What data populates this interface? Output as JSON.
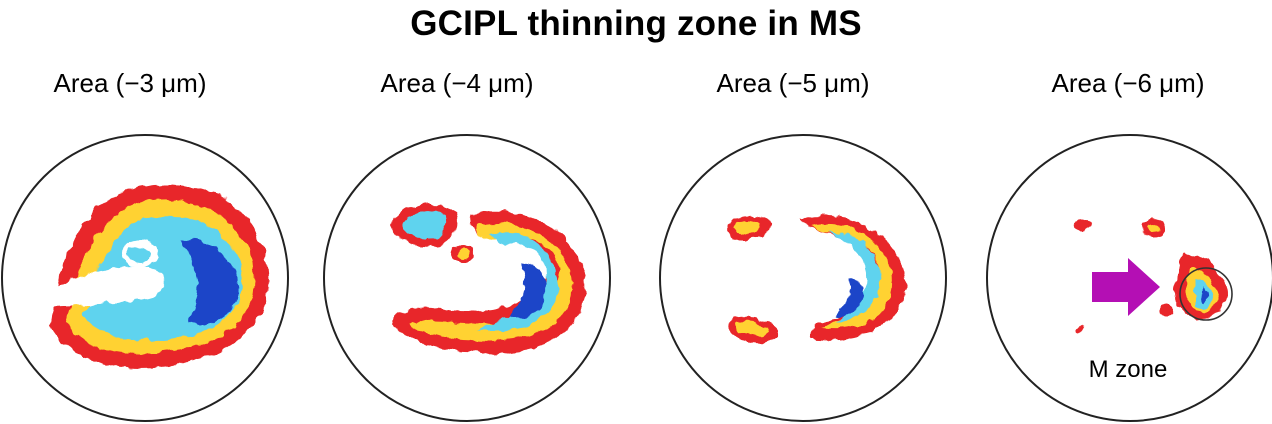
{
  "title": "GCIPL thinning zone in MS",
  "panels": [
    {
      "label": "Area (−3 μm)"
    },
    {
      "label": "Area (−4 μm)"
    },
    {
      "label": "Area (−5 μm)"
    },
    {
      "label": "Area (−6 μm)"
    }
  ],
  "annotation": {
    "zone_label": "M zone",
    "arrow_color": "#b40fb4"
  },
  "colors": {
    "outline": "#222222",
    "heat_low": "#e8282a",
    "heat_mid": "#ffd230",
    "heat_cyan": "#5fd3ee",
    "heat_high": "#1b45c8"
  }
}
